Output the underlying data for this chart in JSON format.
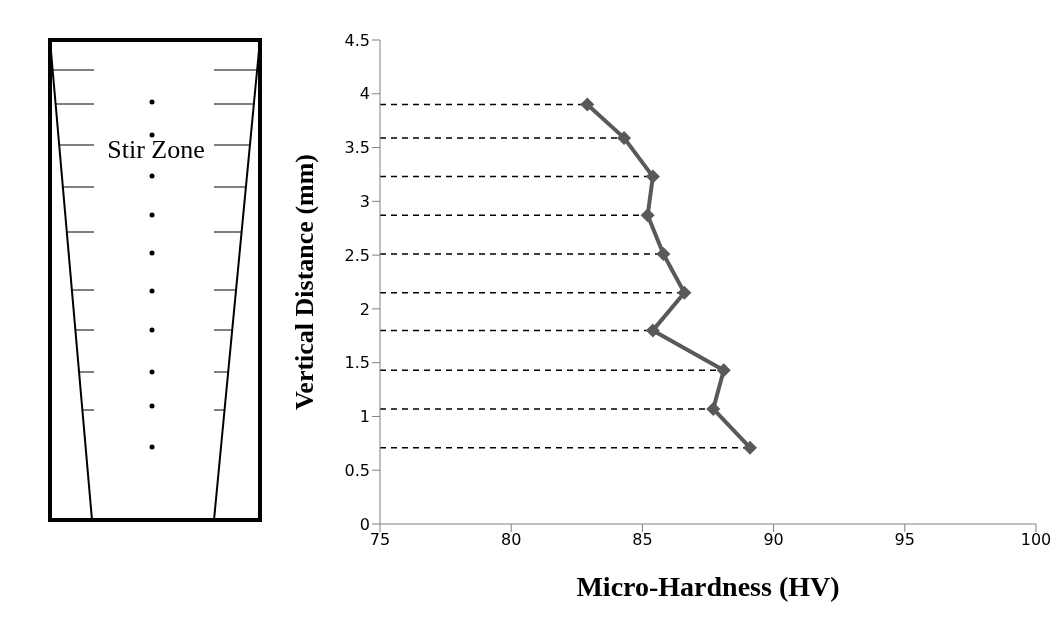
{
  "chart_data": {
    "type": "line",
    "xlabel": "Micro-Hardness (HV)",
    "ylabel": "Vertical Distance (mm)",
    "annotations": [
      "Stir Zone"
    ],
    "x": [
      82.9,
      84.3,
      85.4,
      85.2,
      85.8,
      86.6,
      85.4,
      88.1,
      87.7,
      89.1
    ],
    "series": [
      {
        "color": "#595959",
        "values": [
          3.9,
          3.59,
          3.23,
          2.87,
          2.51,
          2.15,
          1.8,
          1.43,
          1.07,
          0.71
        ]
      }
    ],
    "xlim": [
      75,
      100
    ],
    "xticks": [
      75,
      80,
      85,
      90,
      95,
      100
    ],
    "ylim": [
      0,
      4.5
    ],
    "yticks": [
      0,
      0.5,
      1,
      1.5,
      2,
      2.5,
      3,
      3.5,
      4,
      4.5
    ],
    "ref_lines": [
      {
        "axis": "y",
        "value": 3.9,
        "color": "#000000",
        "line_style": "dashed"
      },
      {
        "axis": "y",
        "value": 3.59,
        "color": "#000000",
        "line_style": "dashed"
      },
      {
        "axis": "y",
        "value": 3.23,
        "color": "#000000",
        "line_style": "dashed"
      },
      {
        "axis": "y",
        "value": 2.87,
        "color": "#000000",
        "line_style": "dashed"
      },
      {
        "axis": "y",
        "value": 2.51,
        "color": "#000000",
        "line_style": "dashed"
      },
      {
        "axis": "y",
        "value": 2.15,
        "color": "#000000",
        "line_style": "dashed"
      },
      {
        "axis": "y",
        "value": 1.8,
        "color": "#000000",
        "line_style": "dashed"
      },
      {
        "axis": "y",
        "value": 1.43,
        "color": "#000000",
        "line_style": "dashed"
      },
      {
        "axis": "y",
        "value": 1.07,
        "color": "#000000",
        "line_style": "dashed"
      },
      {
        "axis": "y",
        "value": 0.71,
        "color": "#000000",
        "line_style": "dashed"
      }
    ],
    "grid": false,
    "legend": false,
    "marker": "diamond",
    "line_style": "solid"
  }
}
